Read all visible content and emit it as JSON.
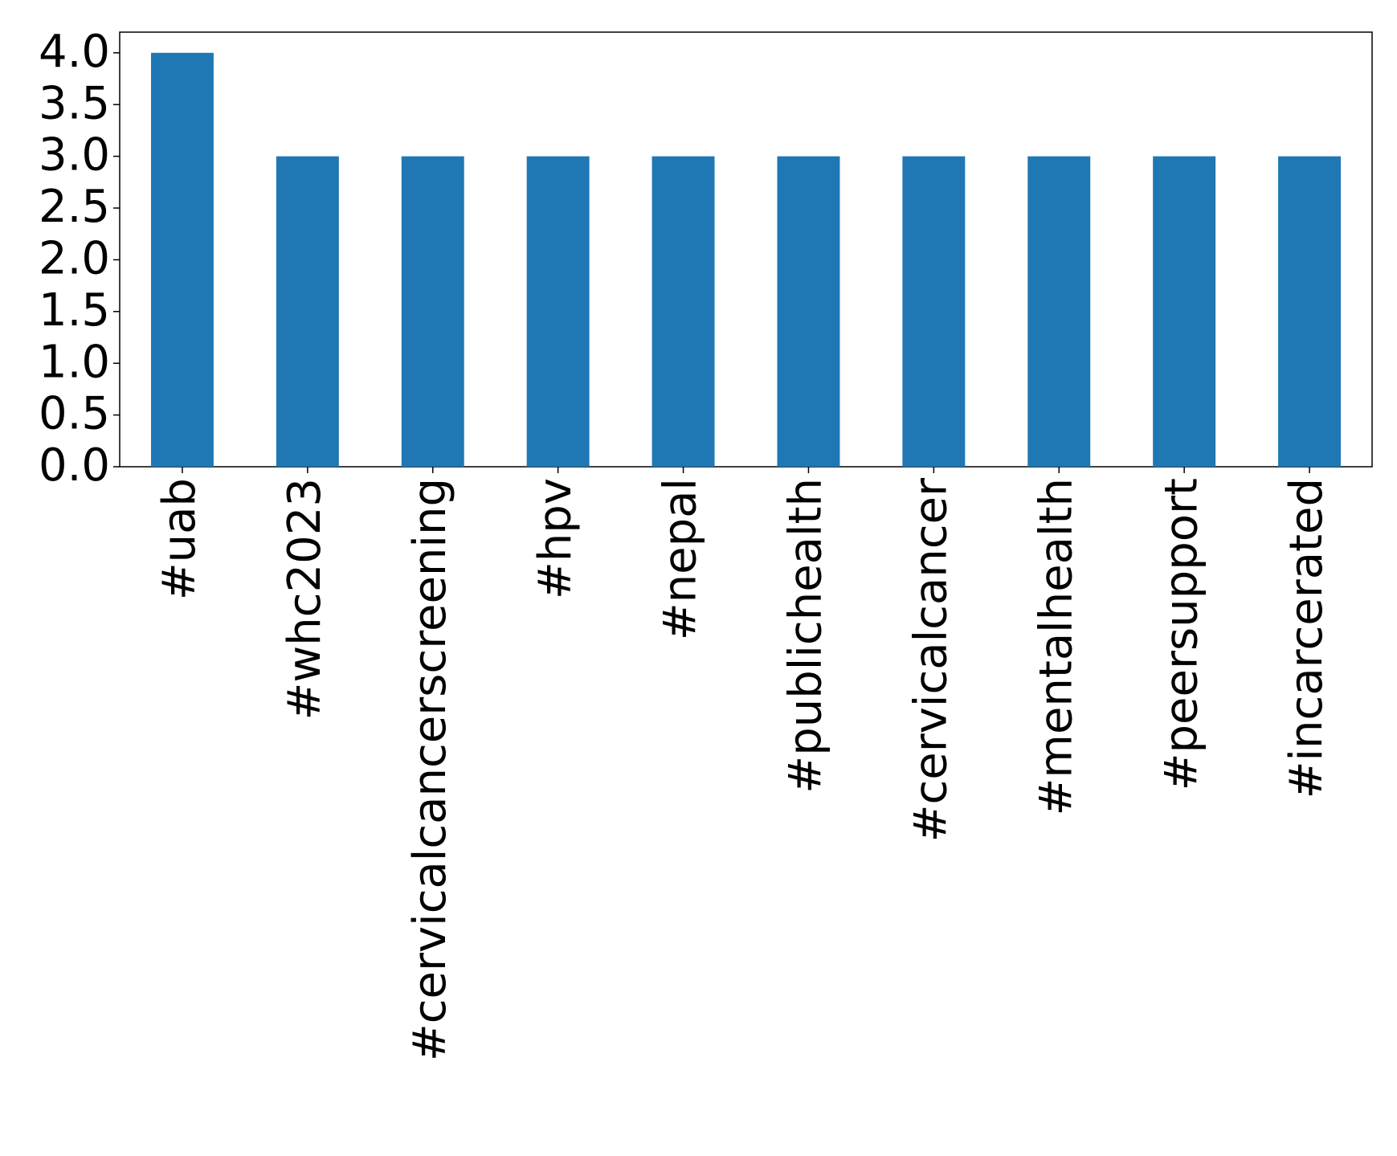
{
  "chart_data": {
    "type": "bar",
    "categories": [
      "#uab",
      "#whc2023",
      "#cervicalcancerscreening",
      "#hpv",
      "#nepal",
      "#publichealth",
      "#cervicalcancer",
      "#mentalhealth",
      "#peersupport",
      "#incarcerated"
    ],
    "values": [
      4,
      3,
      3,
      3,
      3,
      3,
      3,
      3,
      3,
      3
    ],
    "color": "#1f77b4",
    "ylim": [
      0,
      4.2
    ],
    "yticks": [
      {
        "value": 0,
        "label": "0.0"
      },
      {
        "value": 0.5,
        "label": "0.5"
      },
      {
        "value": 1,
        "label": "1.0"
      },
      {
        "value": 1.5,
        "label": "1.5"
      },
      {
        "value": 2,
        "label": "2.0"
      },
      {
        "value": 2.5,
        "label": "2.5"
      },
      {
        "value": 3,
        "label": "3.0"
      },
      {
        "value": 3.5,
        "label": "3.5"
      },
      {
        "value": 4,
        "label": "4.0"
      }
    ],
    "grid": false
  }
}
